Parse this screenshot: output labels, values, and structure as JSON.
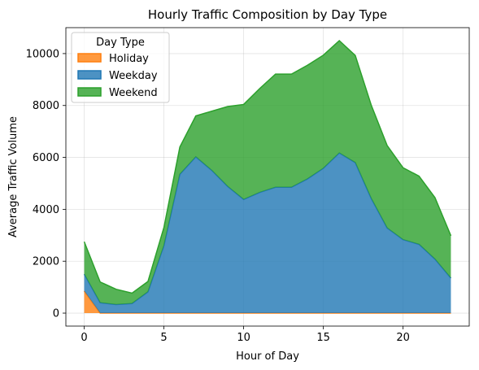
{
  "chart_data": {
    "type": "area",
    "stacked": true,
    "title": "Hourly Traffic Composition by Day Type",
    "xlabel": "Hour of Day",
    "ylabel": "Average Traffic Volume",
    "x": [
      0,
      1,
      2,
      3,
      4,
      5,
      6,
      7,
      8,
      9,
      10,
      11,
      12,
      13,
      14,
      15,
      16,
      17,
      18,
      19,
      20,
      21,
      22,
      23
    ],
    "xlim": [
      -1.15,
      24.15
    ],
    "ylim": [
      -500,
      11000
    ],
    "xticks": [
      0,
      5,
      10,
      15,
      20
    ],
    "yticks": [
      0,
      2000,
      4000,
      6000,
      8000,
      10000
    ],
    "grid": true,
    "legend": {
      "title": "Day Type",
      "position": "top-left"
    },
    "series": [
      {
        "name": "Holiday",
        "color": "#ff7f0e",
        "values": [
          850,
          0,
          0,
          0,
          0,
          0,
          0,
          0,
          0,
          0,
          0,
          0,
          0,
          0,
          0,
          0,
          0,
          0,
          0,
          0,
          0,
          0,
          0,
          0
        ]
      },
      {
        "name": "Weekday",
        "color": "#1f77b4",
        "values": [
          650,
          400,
          330,
          370,
          820,
          2600,
          5350,
          6020,
          5500,
          4880,
          4380,
          4650,
          4850,
          4850,
          5170,
          5580,
          6170,
          5800,
          4420,
          3280,
          2830,
          2650,
          2080,
          1350
        ]
      },
      {
        "name": "Weekend",
        "color": "#2ca02c",
        "values": [
          1250,
          800,
          590,
          400,
          400,
          700,
          1050,
          1580,
          2280,
          3080,
          3660,
          4000,
          4360,
          4360,
          4380,
          4360,
          4330,
          4130,
          3600,
          3180,
          2770,
          2630,
          2370,
          1630
        ]
      }
    ]
  }
}
